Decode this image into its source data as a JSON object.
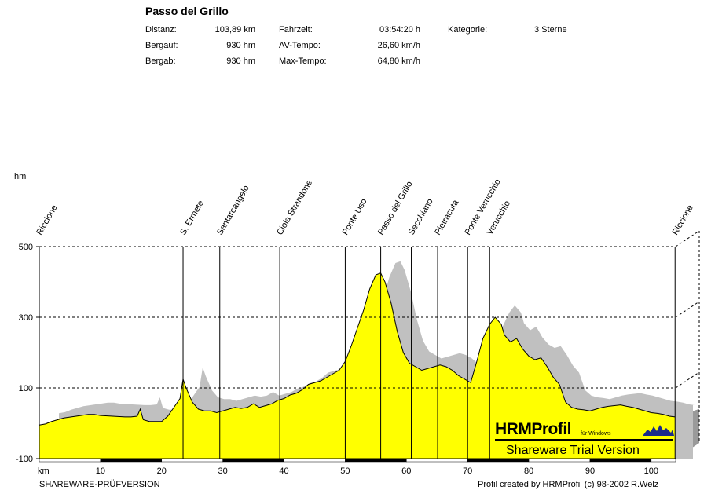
{
  "header": {
    "title": "Passo del Grillo",
    "stats": [
      {
        "label": "Distanz:",
        "value": "103,89 km"
      },
      {
        "label": "Bergauf:",
        "value": "930 hm"
      },
      {
        "label": "Bergab:",
        "value": "930 hm"
      }
    ],
    "times": [
      {
        "label": "Fahrzeit:",
        "value": "03:54:20 h"
      },
      {
        "label": "AV-Tempo:",
        "value": "26,60 km/h"
      },
      {
        "label": "Max-Tempo:",
        "value": "64,80 km/h"
      }
    ],
    "category": {
      "label": "Kategorie:",
      "value": "3 Sterne"
    }
  },
  "chart_data": {
    "type": "area",
    "xlabel": "km",
    "ylabel": "hm",
    "xlim": [
      0,
      104
    ],
    "ylim": [
      -100,
      500
    ],
    "x_ticks": [
      "10",
      "20",
      "30",
      "40",
      "50",
      "60",
      "70",
      "80",
      "90",
      "100"
    ],
    "y_ticks": [
      "500",
      "300",
      "100",
      "-100"
    ],
    "colors": {
      "profile": "#ffff00",
      "shadow": "#c0c0c0",
      "axis": "#000000"
    },
    "waypoints": [
      {
        "name": "Riccione",
        "km": 0
      },
      {
        "name": "S. Ermete",
        "km": 23.5
      },
      {
        "name": "Santarcangelo",
        "km": 29.5
      },
      {
        "name": "Ciola Strandone",
        "km": 39.3
      },
      {
        "name": "Ponte Uso",
        "km": 50
      },
      {
        "name": "Passo del Grillo",
        "km": 55.8
      },
      {
        "name": "Secchiano",
        "km": 60.8
      },
      {
        "name": "Pietracuta",
        "km": 65.1
      },
      {
        "name": "Ponte Verucchio",
        "km": 70
      },
      {
        "name": "Verucchio",
        "km": 73.6
      },
      {
        "name": "Riccione",
        "km": 103.9
      }
    ],
    "series": [
      {
        "x": [
          0,
          1,
          2,
          4,
          6,
          8,
          9,
          10,
          12,
          14,
          15,
          16,
          16.5,
          17,
          18,
          19,
          20,
          21,
          22,
          23,
          23.5,
          24,
          25,
          26,
          27,
          28,
          29,
          30,
          31,
          32,
          33,
          34,
          35,
          36,
          37,
          38,
          39,
          40,
          41,
          42,
          43,
          44,
          45,
          46,
          47,
          48,
          49,
          50,
          51,
          52,
          53,
          54,
          55,
          55.8,
          56.5,
          57.5,
          58.5,
          59.5,
          60.5,
          61.5,
          62.5,
          63.5,
          64.5,
          65.5,
          66.5,
          67.5,
          68.5,
          69.5,
          70.5,
          71.5,
          72.5,
          73.6,
          74.5,
          75.5,
          76,
          77,
          78,
          79,
          80,
          81,
          82,
          83,
          84,
          85,
          86,
          87,
          88,
          89,
          90,
          91,
          92,
          93,
          94,
          95,
          96,
          97,
          98,
          99,
          100,
          101,
          102,
          103,
          103.9
        ],
        "y": [
          -5,
          -2,
          5,
          15,
          20,
          25,
          25,
          22,
          20,
          18,
          18,
          20,
          40,
          10,
          5,
          5,
          5,
          20,
          45,
          70,
          125,
          100,
          60,
          40,
          35,
          35,
          30,
          35,
          40,
          45,
          42,
          45,
          55,
          45,
          50,
          55,
          65,
          70,
          80,
          85,
          95,
          110,
          115,
          120,
          130,
          140,
          150,
          175,
          220,
          270,
          320,
          380,
          420,
          425,
          400,
          340,
          260,
          200,
          170,
          160,
          150,
          155,
          160,
          165,
          160,
          150,
          135,
          125,
          115,
          175,
          240,
          280,
          300,
          280,
          250,
          230,
          240,
          210,
          190,
          180,
          185,
          160,
          130,
          110,
          60,
          45,
          40,
          38,
          35,
          40,
          45,
          48,
          50,
          52,
          48,
          45,
          40,
          35,
          30,
          28,
          25,
          20,
          18
        ]
      }
    ]
  },
  "trial_box": {
    "brand": "HRMProfil",
    "brand_sub": "für Windows",
    "notice": "Shareware Trial  Version"
  },
  "footer": {
    "left": "SHAREWARE-PRÜFVERSION",
    "right": "Profil created by HRMProfil (c) 98-2002 R.Welz"
  }
}
